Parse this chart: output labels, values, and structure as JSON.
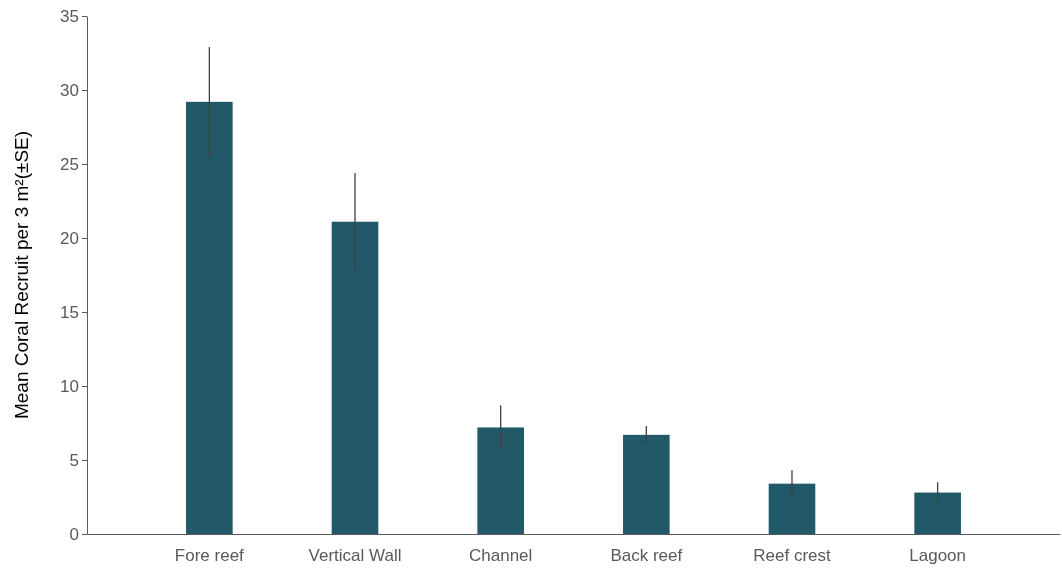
{
  "chart_data": {
    "type": "bar",
    "ylabel": "Mean Coral Recruit per 3 m²(±SE)",
    "categories": [
      "Fore reef",
      "Vertical Wall",
      "Channel",
      "Back reef",
      "Reef crest",
      "Lagoon"
    ],
    "values": [
      29.2,
      21.1,
      7.2,
      6.7,
      3.4,
      2.8
    ],
    "errors": [
      3.7,
      3.3,
      1.5,
      0.6,
      0.9,
      0.7
    ],
    "color": "#215968",
    "ylim": [
      0,
      35
    ],
    "yticks": [
      0,
      5,
      10,
      15,
      20,
      25,
      30,
      35
    ],
    "grid": false
  }
}
